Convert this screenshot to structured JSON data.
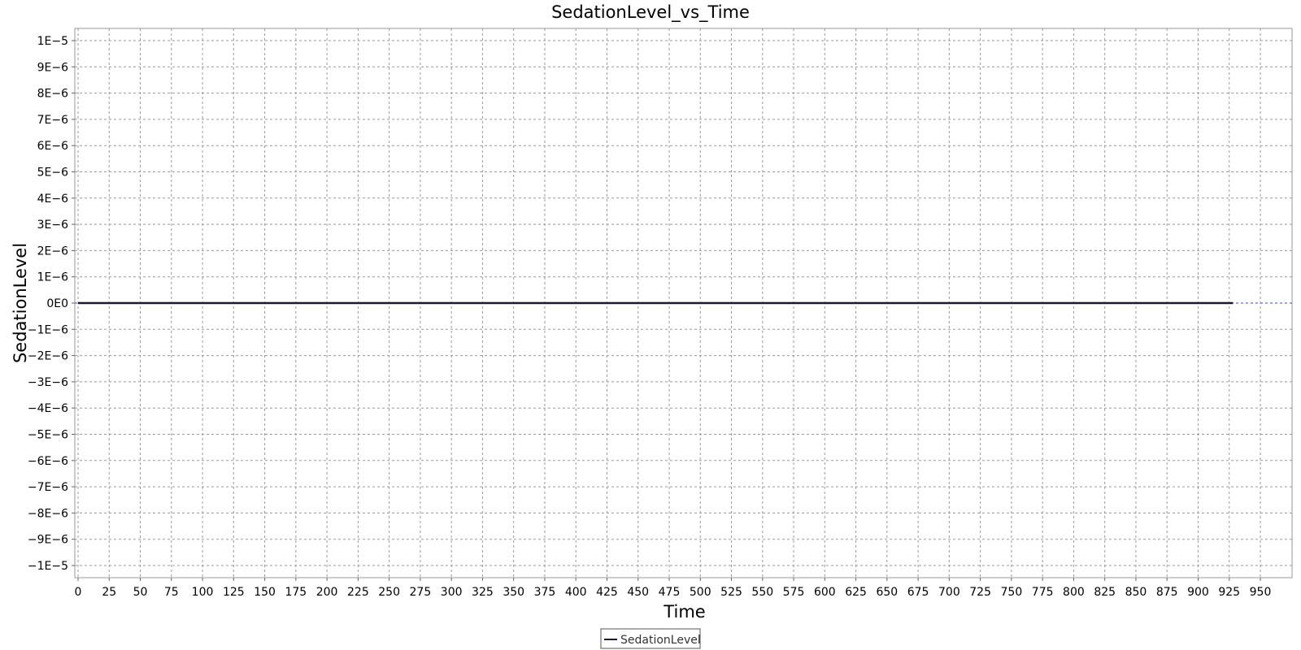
{
  "chart_data": {
    "type": "line",
    "title": "SedationLevel_vs_Time",
    "xlabel": "Time",
    "ylabel": "SedationLevel",
    "xlim": [
      0,
      960
    ],
    "ylim": [
      -1.05e-05,
      1.05e-05
    ],
    "x_ticks": [
      "0",
      "25",
      "50",
      "75",
      "100",
      "125",
      "150",
      "175",
      "200",
      "225",
      "250",
      "275",
      "300",
      "325",
      "350",
      "375",
      "400",
      "425",
      "450",
      "475",
      "500",
      "525",
      "550",
      "575",
      "600",
      "625",
      "650",
      "675",
      "700",
      "725",
      "750",
      "775",
      "800",
      "825",
      "850",
      "875",
      "900",
      "925",
      "950"
    ],
    "y_ticks": [
      "1E−5",
      "9E−6",
      "8E−6",
      "7E−6",
      "6E−6",
      "5E−6",
      "4E−6",
      "3E−6",
      "2E−6",
      "1E−6",
      "0E0",
      "−1E−6",
      "−2E−6",
      "−3E−6",
      "−4E−6",
      "−5E−6",
      "−6E−6",
      "−7E−6",
      "−8E−6",
      "−9E−6",
      "−1E−5"
    ],
    "grid": true,
    "legend_position": "bottom",
    "series": [
      {
        "name": "SedationLevel",
        "color": "#1a1a2e",
        "x": [
          0,
          928
        ],
        "y": [
          0,
          0
        ]
      }
    ]
  }
}
